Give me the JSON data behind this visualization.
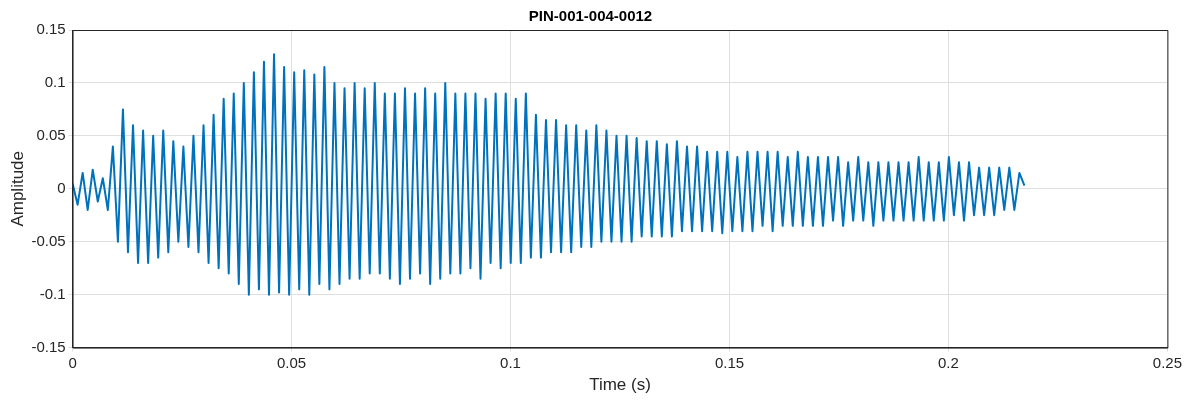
{
  "chart_data": {
    "type": "line",
    "title": "PIN-001-004-0012",
    "xlabel": "Time (s)",
    "ylabel": "Amplitude",
    "xlim": [
      0,
      0.25
    ],
    "xticks": [
      0,
      0.05,
      0.1,
      0.15,
      0.2,
      0.25
    ],
    "ylim": [
      -0.15,
      0.15
    ],
    "yticks": [
      -0.15,
      -0.1,
      -0.05,
      0,
      0.05,
      0.1,
      0.15
    ],
    "grid": true,
    "marker": "none",
    "line_style": "solid",
    "series": [
      {
        "color": "#0072bd",
        "x": [
          0,
          0.00115,
          0.0023,
          0.00345,
          0.0046,
          0.00575,
          0.0069,
          0.00805,
          0.0092,
          0.01035,
          0.0115,
          0.01265,
          0.0138,
          0.01495,
          0.0161,
          0.01725,
          0.0184,
          0.01955,
          0.0207,
          0.02185,
          0.023,
          0.02415,
          0.0253,
          0.02645,
          0.0276,
          0.02875,
          0.0299,
          0.03105,
          0.0322,
          0.03335,
          0.0345,
          0.03565,
          0.0368,
          0.03795,
          0.0391,
          0.04025,
          0.0414,
          0.04255,
          0.0437,
          0.04485,
          0.046,
          0.04715,
          0.0483,
          0.04945,
          0.0506,
          0.05175,
          0.0529,
          0.05405,
          0.0552,
          0.05635,
          0.0575,
          0.05865,
          0.0598,
          0.06095,
          0.0621,
          0.06325,
          0.0644,
          0.06555,
          0.0667,
          0.06785,
          0.069,
          0.07015,
          0.0713,
          0.07245,
          0.0736,
          0.07475,
          0.0759,
          0.07705,
          0.0782,
          0.07935,
          0.0805,
          0.08165,
          0.0828,
          0.08395,
          0.0851,
          0.08625,
          0.0874,
          0.08855,
          0.0897,
          0.09085,
          0.092,
          0.09315,
          0.0943,
          0.09545,
          0.0966,
          0.09775,
          0.0989,
          0.10005,
          0.1012,
          0.10235,
          0.1035,
          0.10465,
          0.1058,
          0.10695,
          0.1081,
          0.10925,
          0.1104,
          0.11155,
          0.1127,
          0.11385,
          0.115,
          0.11615,
          0.1173,
          0.11845,
          0.1196,
          0.12075,
          0.1219,
          0.12305,
          0.1242,
          0.12535,
          0.1265,
          0.12765,
          0.1288,
          0.12995,
          0.1311,
          0.13225,
          0.1334,
          0.13455,
          0.1357,
          0.13685,
          0.138,
          0.13915,
          0.1403,
          0.14145,
          0.1426,
          0.14375,
          0.1449,
          0.14605,
          0.1472,
          0.14835,
          0.1495,
          0.15065,
          0.1518,
          0.15295,
          0.1541,
          0.15525,
          0.1564,
          0.15755,
          0.1587,
          0.15985,
          0.161,
          0.16215,
          0.1633,
          0.16445,
          0.1656,
          0.16675,
          0.1679,
          0.16905,
          0.1702,
          0.17135,
          0.1725,
          0.17365,
          0.1748,
          0.17595,
          0.1771,
          0.17825,
          0.1794,
          0.18055,
          0.1817,
          0.18285,
          0.184,
          0.18515,
          0.1863,
          0.18745,
          0.1886,
          0.18975,
          0.1909,
          0.19205,
          0.1932,
          0.19435,
          0.1955,
          0.19665,
          0.1978,
          0.19895,
          0.2001,
          0.20125,
          0.2024,
          0.20355,
          0.2047,
          0.20585,
          0.207,
          0.20815,
          0.2093,
          0.21045,
          0.2116,
          0.21275,
          0.2139,
          0.21505,
          0.2162,
          0.21735
        ],
        "values": [
          0.005,
          -0.015,
          0.015,
          -0.02,
          0.018,
          -0.012,
          0.01,
          -0.02,
          0.04,
          -0.05,
          0.075,
          -0.06,
          0.06,
          -0.07,
          0.055,
          -0.07,
          0.05,
          -0.065,
          0.055,
          -0.06,
          0.045,
          -0.05,
          0.04,
          -0.055,
          0.05,
          -0.06,
          0.06,
          -0.07,
          0.07,
          -0.075,
          0.085,
          -0.08,
          0.09,
          -0.09,
          0.1,
          -0.1,
          0.11,
          -0.095,
          0.12,
          -0.1,
          0.127,
          -0.098,
          0.115,
          -0.1,
          0.11,
          -0.095,
          0.112,
          -0.1,
          0.108,
          -0.09,
          0.115,
          -0.095,
          0.1,
          -0.09,
          0.095,
          -0.085,
          0.1,
          -0.085,
          0.095,
          -0.08,
          0.1,
          -0.08,
          0.09,
          -0.085,
          0.09,
          -0.09,
          0.095,
          -0.085,
          0.09,
          -0.08,
          0.095,
          -0.09,
          0.09,
          -0.085,
          0.1,
          -0.08,
          0.09,
          -0.08,
          0.09,
          -0.075,
          0.09,
          -0.085,
          0.085,
          -0.07,
          0.09,
          -0.075,
          0.09,
          -0.07,
          0.085,
          -0.07,
          0.09,
          -0.065,
          0.07,
          -0.065,
          0.065,
          -0.06,
          0.065,
          -0.06,
          0.06,
          -0.06,
          0.06,
          -0.055,
          0.055,
          -0.055,
          0.06,
          -0.05,
          0.055,
          -0.05,
          0.05,
          -0.05,
          0.05,
          -0.05,
          0.048,
          -0.045,
          0.045,
          -0.045,
          0.045,
          -0.045,
          0.042,
          -0.045,
          0.045,
          -0.04,
          0.04,
          -0.04,
          0.04,
          -0.04,
          0.035,
          -0.04,
          0.035,
          -0.042,
          0.035,
          -0.04,
          0.03,
          -0.04,
          0.035,
          -0.04,
          0.035,
          -0.035,
          0.035,
          -0.04,
          0.035,
          -0.035,
          0.03,
          -0.035,
          0.035,
          -0.035,
          0.03,
          -0.035,
          0.03,
          -0.035,
          0.03,
          -0.03,
          0.03,
          -0.035,
          0.025,
          -0.03,
          0.03,
          -0.03,
          0.025,
          -0.035,
          0.025,
          -0.03,
          0.025,
          -0.03,
          0.025,
          -0.03,
          0.025,
          -0.03,
          0.03,
          -0.03,
          0.025,
          -0.03,
          0.025,
          -0.03,
          0.03,
          -0.025,
          0.025,
          -0.03,
          0.025,
          -0.025,
          0.02,
          -0.025,
          0.02,
          -0.025,
          0.02,
          -0.02,
          0.02,
          -0.02,
          0.015,
          0.003
        ]
      }
    ]
  }
}
